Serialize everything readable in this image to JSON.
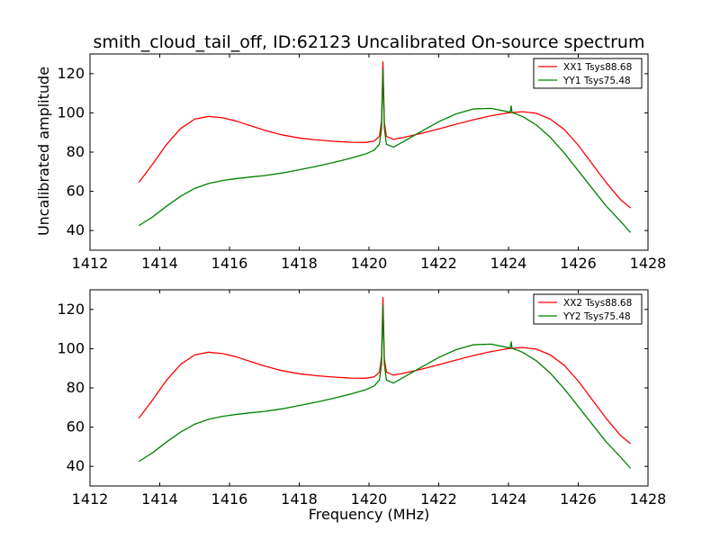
{
  "figure": {
    "title": "smith_cloud_tail_off, ID:62123 Uncalibrated On-source spectrum",
    "xlabel": "Frequency (MHz)",
    "ylabel": "Uncalibrated amplitude"
  },
  "chart_data": [
    {
      "type": "line",
      "xlim": [
        1412,
        1428
      ],
      "ylim": [
        30,
        130
      ],
      "xticks": [
        1412,
        1414,
        1416,
        1418,
        1420,
        1422,
        1424,
        1426,
        1428
      ],
      "yticks": [
        40,
        60,
        80,
        100,
        120
      ],
      "grid": false,
      "legend_position": "top-right",
      "series": [
        {
          "name": "XX1 Tsys88.68",
          "color": "#ff0000",
          "x": [
            1413.4,
            1413.8,
            1414.2,
            1414.6,
            1415.0,
            1415.4,
            1415.8,
            1416.2,
            1416.6,
            1417.0,
            1417.5,
            1418.0,
            1418.5,
            1419.0,
            1419.5,
            1419.9,
            1420.15,
            1420.3,
            1420.36,
            1420.4,
            1420.44,
            1420.5,
            1420.7,
            1421.0,
            1421.5,
            1422.0,
            1422.5,
            1423.0,
            1423.5,
            1424.0,
            1424.4,
            1424.8,
            1425.2,
            1425.6,
            1426.0,
            1426.4,
            1426.8,
            1427.2,
            1427.5
          ],
          "values": [
            64.5,
            74,
            84,
            92,
            96.8,
            98.2,
            97.5,
            95.8,
            93.5,
            91.2,
            88.8,
            87.2,
            86.2,
            85.5,
            85,
            84.9,
            85.6,
            88,
            96,
            126,
            95,
            88,
            86.5,
            87.5,
            89.5,
            91.8,
            94.2,
            96.5,
            98.5,
            100,
            100.6,
            99.8,
            96.8,
            91.5,
            83.5,
            74,
            64.5,
            56,
            51.5
          ]
        },
        {
          "name": "YY1 Tsys75.48",
          "color": "#008000",
          "x": [
            1413.4,
            1413.8,
            1414.2,
            1414.6,
            1415.0,
            1415.4,
            1415.8,
            1416.2,
            1416.6,
            1417.0,
            1417.5,
            1418.0,
            1418.5,
            1419.0,
            1419.5,
            1419.9,
            1420.15,
            1420.3,
            1420.36,
            1420.4,
            1420.44,
            1420.5,
            1420.7,
            1421.0,
            1421.5,
            1422.0,
            1422.5,
            1423.0,
            1423.5,
            1424.0,
            1424.05,
            1424.08,
            1424.1,
            1424.4,
            1424.8,
            1425.2,
            1425.6,
            1426.0,
            1426.4,
            1426.8,
            1427.2,
            1427.5
          ],
          "values": [
            42.5,
            47,
            52.5,
            57.5,
            61.5,
            64,
            65.5,
            66.5,
            67.3,
            68,
            69.3,
            71,
            72.8,
            74.8,
            77,
            79,
            81,
            84,
            92,
            122,
            92,
            84,
            82.5,
            85.5,
            90.5,
            95.5,
            99.5,
            102,
            102.3,
            100.5,
            100.5,
            103.5,
            100.2,
            98.2,
            93.8,
            87.5,
            79.5,
            70.5,
            61.5,
            52.5,
            45,
            39
          ]
        }
      ]
    },
    {
      "type": "line",
      "xlim": [
        1412,
        1428
      ],
      "ylim": [
        30,
        130
      ],
      "xticks": [
        1412,
        1414,
        1416,
        1418,
        1420,
        1422,
        1424,
        1426,
        1428
      ],
      "yticks": [
        40,
        60,
        80,
        100,
        120
      ],
      "grid": false,
      "legend_position": "top-right",
      "series": [
        {
          "name": "XX2 Tsys88.68",
          "color": "#ff0000",
          "x": [
            1413.4,
            1413.8,
            1414.2,
            1414.6,
            1415.0,
            1415.4,
            1415.8,
            1416.2,
            1416.6,
            1417.0,
            1417.5,
            1418.0,
            1418.5,
            1419.0,
            1419.5,
            1419.9,
            1420.15,
            1420.3,
            1420.36,
            1420.4,
            1420.44,
            1420.5,
            1420.7,
            1421.0,
            1421.5,
            1422.0,
            1422.5,
            1423.0,
            1423.5,
            1424.0,
            1424.4,
            1424.8,
            1425.2,
            1425.6,
            1426.0,
            1426.4,
            1426.8,
            1427.2,
            1427.5
          ],
          "values": [
            64.5,
            74,
            84,
            92,
            96.8,
            98.2,
            97.5,
            95.8,
            93.5,
            91.2,
            88.8,
            87.2,
            86.2,
            85.5,
            85,
            84.9,
            85.6,
            88,
            96,
            126,
            95,
            88,
            86.5,
            87.5,
            89.5,
            91.8,
            94.2,
            96.5,
            98.5,
            100,
            100.6,
            99.8,
            96.8,
            91.5,
            83.5,
            74,
            64.5,
            56,
            51.5
          ]
        },
        {
          "name": "YY2 Tsys75.48",
          "color": "#008000",
          "x": [
            1413.4,
            1413.8,
            1414.2,
            1414.6,
            1415.0,
            1415.4,
            1415.8,
            1416.2,
            1416.6,
            1417.0,
            1417.5,
            1418.0,
            1418.5,
            1419.0,
            1419.5,
            1419.9,
            1420.15,
            1420.3,
            1420.36,
            1420.4,
            1420.44,
            1420.5,
            1420.7,
            1421.0,
            1421.5,
            1422.0,
            1422.5,
            1423.0,
            1423.5,
            1424.0,
            1424.05,
            1424.08,
            1424.1,
            1424.4,
            1424.8,
            1425.2,
            1425.6,
            1426.0,
            1426.4,
            1426.8,
            1427.2,
            1427.5
          ],
          "values": [
            42.5,
            47,
            52.5,
            57.5,
            61.5,
            64,
            65.5,
            66.5,
            67.3,
            68,
            69.3,
            71,
            72.8,
            74.8,
            77,
            79,
            81,
            84,
            92,
            122,
            92,
            84,
            82.5,
            85.5,
            90.5,
            95.5,
            99.5,
            102,
            102.3,
            100.5,
            100.5,
            103.5,
            100.2,
            98.2,
            93.8,
            87.5,
            79.5,
            70.5,
            61.5,
            52.5,
            45,
            39
          ]
        }
      ]
    }
  ]
}
